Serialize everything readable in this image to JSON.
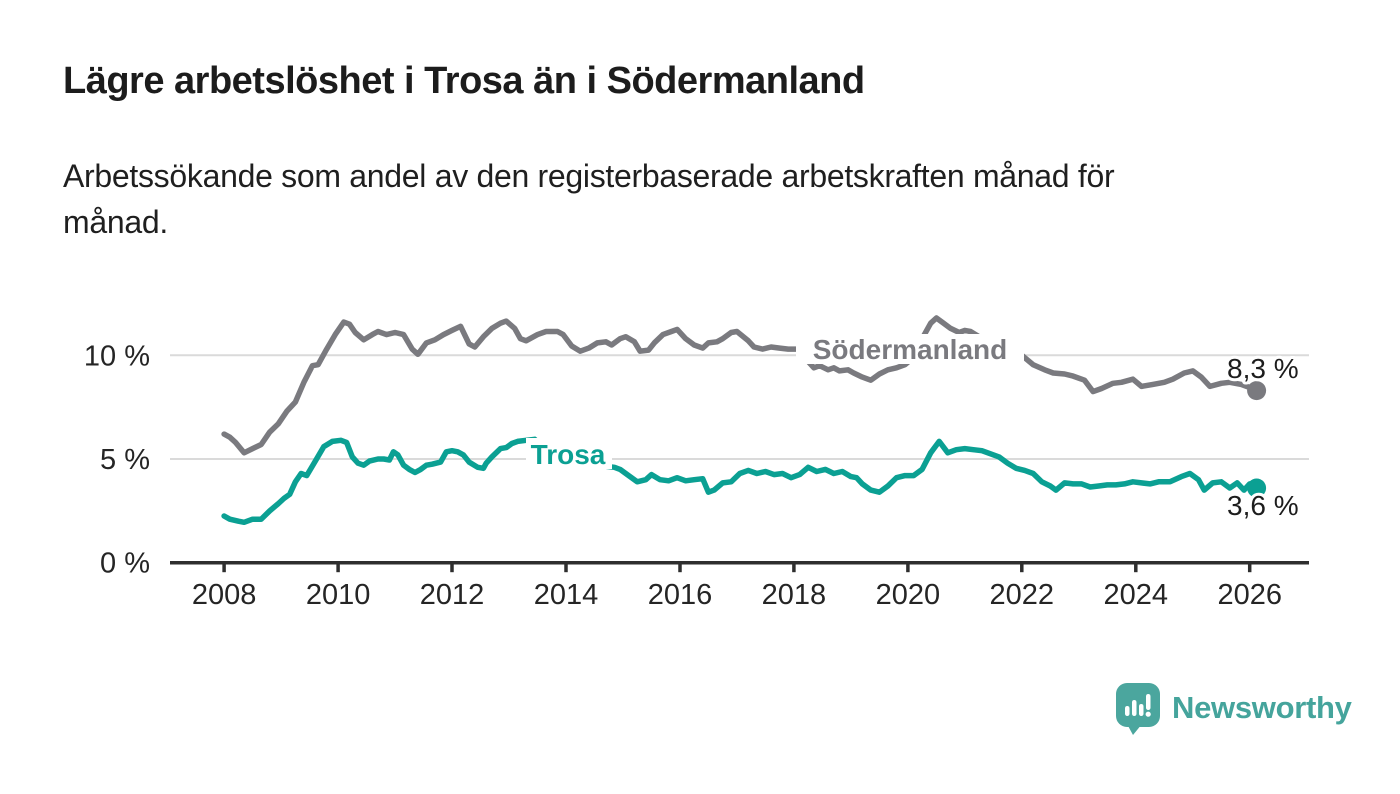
{
  "header": {
    "title": "Lägre arbetslöshet i Trosa än i Södermanland",
    "subtitle_lines": [
      "Arbetssökande som andel av den registerbaserade arbetskraften månad för",
      "månad."
    ],
    "subtitle_full": "Arbetssökande som andel av den registerbaserade arbetskraften månad för månad."
  },
  "chart_data": {
    "type": "line",
    "title": "Lägre arbetslöshet i Trosa än i Södermanland",
    "unit": "%",
    "grid": "horizontal-only",
    "legend": "inline-series-labels",
    "x_axis": {
      "ticks": [
        2008,
        2010,
        2012,
        2014,
        2016,
        2018,
        2020,
        2022,
        2024,
        2026
      ],
      "range": [
        2007.05,
        2027.04
      ]
    },
    "y_axis": {
      "ticks": [
        {
          "value": 0,
          "label": "0 %"
        },
        {
          "value": 5,
          "label": "5 %"
        },
        {
          "value": 10,
          "label": "10 %"
        }
      ],
      "range": [
        0,
        13.15
      ]
    },
    "series": [
      {
        "name": "Södermanland",
        "color": "#7a7a7f",
        "end_label": "8,3 %",
        "end_value": 8.3,
        "points": [
          [
            2008.0,
            6.2
          ],
          [
            2008.1,
            6.05
          ],
          [
            2008.2,
            5.8
          ],
          [
            2008.35,
            5.3
          ],
          [
            2008.5,
            5.5
          ],
          [
            2008.65,
            5.7
          ],
          [
            2008.8,
            6.3
          ],
          [
            2008.95,
            6.7
          ],
          [
            2009.1,
            7.3
          ],
          [
            2009.25,
            7.75
          ],
          [
            2009.4,
            8.7
          ],
          [
            2009.55,
            9.5
          ],
          [
            2009.65,
            9.55
          ],
          [
            2009.8,
            10.3
          ],
          [
            2009.95,
            11.0
          ],
          [
            2010.1,
            11.6
          ],
          [
            2010.2,
            11.5
          ],
          [
            2010.3,
            11.1
          ],
          [
            2010.45,
            10.75
          ],
          [
            2010.6,
            11.0
          ],
          [
            2010.7,
            11.15
          ],
          [
            2010.85,
            11.0
          ],
          [
            2011.0,
            11.1
          ],
          [
            2011.15,
            11.0
          ],
          [
            2011.3,
            10.3
          ],
          [
            2011.4,
            10.05
          ],
          [
            2011.55,
            10.6
          ],
          [
            2011.7,
            10.75
          ],
          [
            2011.85,
            11.0
          ],
          [
            2012.0,
            11.2
          ],
          [
            2012.15,
            11.4
          ],
          [
            2012.3,
            10.55
          ],
          [
            2012.4,
            10.4
          ],
          [
            2012.55,
            10.9
          ],
          [
            2012.7,
            11.3
          ],
          [
            2012.85,
            11.55
          ],
          [
            2012.95,
            11.65
          ],
          [
            2013.1,
            11.3
          ],
          [
            2013.2,
            10.8
          ],
          [
            2013.3,
            10.7
          ],
          [
            2013.5,
            11.0
          ],
          [
            2013.65,
            11.15
          ],
          [
            2013.85,
            11.15
          ],
          [
            2013.95,
            11.0
          ],
          [
            2014.1,
            10.45
          ],
          [
            2014.25,
            10.2
          ],
          [
            2014.4,
            10.35
          ],
          [
            2014.55,
            10.6
          ],
          [
            2014.7,
            10.65
          ],
          [
            2014.8,
            10.5
          ],
          [
            2014.95,
            10.8
          ],
          [
            2015.05,
            10.9
          ],
          [
            2015.2,
            10.65
          ],
          [
            2015.3,
            10.2
          ],
          [
            2015.45,
            10.25
          ],
          [
            2015.55,
            10.6
          ],
          [
            2015.7,
            11.0
          ],
          [
            2015.85,
            11.15
          ],
          [
            2015.95,
            11.25
          ],
          [
            2016.1,
            10.8
          ],
          [
            2016.25,
            10.5
          ],
          [
            2016.4,
            10.35
          ],
          [
            2016.5,
            10.6
          ],
          [
            2016.65,
            10.65
          ],
          [
            2016.75,
            10.8
          ],
          [
            2016.9,
            11.1
          ],
          [
            2017.0,
            11.15
          ],
          [
            2017.2,
            10.7
          ],
          [
            2017.3,
            10.4
          ],
          [
            2017.45,
            10.3
          ],
          [
            2017.6,
            10.4
          ],
          [
            2017.75,
            10.35
          ],
          [
            2017.9,
            10.3
          ],
          [
            2018.05,
            10.3
          ],
          [
            2018.15,
            10.1
          ],
          [
            2018.25,
            9.7
          ],
          [
            2018.35,
            9.4
          ],
          [
            2018.45,
            9.5
          ],
          [
            2018.6,
            9.3
          ],
          [
            2018.7,
            9.4
          ],
          [
            2018.8,
            9.25
          ],
          [
            2018.95,
            9.3
          ],
          [
            2019.05,
            9.15
          ],
          [
            2019.2,
            8.95
          ],
          [
            2019.35,
            8.8
          ],
          [
            2019.5,
            9.1
          ],
          [
            2019.65,
            9.3
          ],
          [
            2019.8,
            9.4
          ],
          [
            2019.95,
            9.55
          ],
          [
            2020.1,
            9.9
          ],
          [
            2020.25,
            10.8
          ],
          [
            2020.4,
            11.55
          ],
          [
            2020.5,
            11.8
          ],
          [
            2020.6,
            11.6
          ],
          [
            2020.75,
            11.3
          ],
          [
            2020.9,
            11.1
          ],
          [
            2021.0,
            11.2
          ],
          [
            2021.1,
            11.15
          ],
          [
            2021.25,
            10.9
          ],
          [
            2021.4,
            10.65
          ],
          [
            2021.55,
            10.4
          ],
          [
            2021.7,
            10.2
          ],
          [
            2021.85,
            10.1
          ],
          [
            2022.0,
            10.0
          ],
          [
            2022.2,
            9.55
          ],
          [
            2022.4,
            9.3
          ],
          [
            2022.55,
            9.15
          ],
          [
            2022.75,
            9.1
          ],
          [
            2022.9,
            9.0
          ],
          [
            2023.1,
            8.8
          ],
          [
            2023.25,
            8.25
          ],
          [
            2023.4,
            8.4
          ],
          [
            2023.6,
            8.65
          ],
          [
            2023.75,
            8.7
          ],
          [
            2023.95,
            8.85
          ],
          [
            2024.1,
            8.5
          ],
          [
            2024.3,
            8.6
          ],
          [
            2024.5,
            8.7
          ],
          [
            2024.65,
            8.85
          ],
          [
            2024.85,
            9.15
          ],
          [
            2025.0,
            9.25
          ],
          [
            2025.15,
            8.95
          ],
          [
            2025.3,
            8.5
          ],
          [
            2025.5,
            8.65
          ],
          [
            2025.65,
            8.7
          ],
          [
            2025.85,
            8.6
          ],
          [
            2026.0,
            8.45
          ],
          [
            2026.12,
            8.3
          ]
        ]
      },
      {
        "name": "Trosa",
        "color": "#0ba093",
        "end_label": "3,6 %",
        "end_value": 3.6,
        "points": [
          [
            2008.0,
            2.25
          ],
          [
            2008.1,
            2.1
          ],
          [
            2008.25,
            2.0
          ],
          [
            2008.35,
            1.95
          ],
          [
            2008.5,
            2.1
          ],
          [
            2008.65,
            2.1
          ],
          [
            2008.8,
            2.5
          ],
          [
            2008.95,
            2.85
          ],
          [
            2009.05,
            3.1
          ],
          [
            2009.15,
            3.3
          ],
          [
            2009.25,
            3.9
          ],
          [
            2009.35,
            4.3
          ],
          [
            2009.45,
            4.2
          ],
          [
            2009.6,
            4.9
          ],
          [
            2009.75,
            5.6
          ],
          [
            2009.9,
            5.85
          ],
          [
            2010.05,
            5.9
          ],
          [
            2010.15,
            5.8
          ],
          [
            2010.25,
            5.1
          ],
          [
            2010.35,
            4.8
          ],
          [
            2010.45,
            4.7
          ],
          [
            2010.55,
            4.9
          ],
          [
            2010.7,
            5.0
          ],
          [
            2010.8,
            5.0
          ],
          [
            2010.9,
            4.95
          ],
          [
            2010.97,
            5.35
          ],
          [
            2011.05,
            5.2
          ],
          [
            2011.15,
            4.7
          ],
          [
            2011.25,
            4.5
          ],
          [
            2011.35,
            4.35
          ],
          [
            2011.45,
            4.5
          ],
          [
            2011.55,
            4.7
          ],
          [
            2011.65,
            4.75
          ],
          [
            2011.8,
            4.85
          ],
          [
            2011.9,
            5.35
          ],
          [
            2012.0,
            5.4
          ],
          [
            2012.1,
            5.35
          ],
          [
            2012.2,
            5.2
          ],
          [
            2012.3,
            4.85
          ],
          [
            2012.45,
            4.6
          ],
          [
            2012.55,
            4.55
          ],
          [
            2012.6,
            4.8
          ],
          [
            2012.7,
            5.1
          ],
          [
            2012.85,
            5.5
          ],
          [
            2012.95,
            5.55
          ],
          [
            2013.05,
            5.75
          ],
          [
            2013.15,
            5.85
          ],
          [
            2013.3,
            5.9
          ],
          [
            2013.45,
            5.95
          ],
          [
            2013.6,
            5.6
          ],
          [
            2013.8,
            5.2
          ],
          [
            2014.0,
            4.95
          ],
          [
            2014.25,
            4.8
          ],
          [
            2014.5,
            4.7
          ],
          [
            2014.7,
            4.65
          ],
          [
            2014.85,
            4.6
          ],
          [
            2014.95,
            4.5
          ],
          [
            2015.1,
            4.2
          ],
          [
            2015.25,
            3.9
          ],
          [
            2015.4,
            4.0
          ],
          [
            2015.5,
            4.25
          ],
          [
            2015.65,
            4.0
          ],
          [
            2015.8,
            3.95
          ],
          [
            2015.95,
            4.1
          ],
          [
            2016.1,
            3.95
          ],
          [
            2016.25,
            4.0
          ],
          [
            2016.4,
            4.05
          ],
          [
            2016.5,
            3.4
          ],
          [
            2016.6,
            3.5
          ],
          [
            2016.75,
            3.85
          ],
          [
            2016.9,
            3.9
          ],
          [
            2017.05,
            4.3
          ],
          [
            2017.2,
            4.45
          ],
          [
            2017.35,
            4.3
          ],
          [
            2017.5,
            4.4
          ],
          [
            2017.65,
            4.25
          ],
          [
            2017.8,
            4.3
          ],
          [
            2017.95,
            4.1
          ],
          [
            2018.1,
            4.25
          ],
          [
            2018.25,
            4.6
          ],
          [
            2018.4,
            4.4
          ],
          [
            2018.55,
            4.5
          ],
          [
            2018.7,
            4.3
          ],
          [
            2018.85,
            4.4
          ],
          [
            2019.0,
            4.15
          ],
          [
            2019.1,
            4.1
          ],
          [
            2019.2,
            3.8
          ],
          [
            2019.35,
            3.5
          ],
          [
            2019.5,
            3.4
          ],
          [
            2019.65,
            3.7
          ],
          [
            2019.8,
            4.1
          ],
          [
            2019.95,
            4.2
          ],
          [
            2020.1,
            4.2
          ],
          [
            2020.25,
            4.5
          ],
          [
            2020.4,
            5.3
          ],
          [
            2020.55,
            5.85
          ],
          [
            2020.7,
            5.3
          ],
          [
            2020.85,
            5.45
          ],
          [
            2021.0,
            5.5
          ],
          [
            2021.15,
            5.45
          ],
          [
            2021.3,
            5.4
          ],
          [
            2021.45,
            5.25
          ],
          [
            2021.6,
            5.1
          ],
          [
            2021.75,
            4.8
          ],
          [
            2021.9,
            4.55
          ],
          [
            2022.05,
            4.45
          ],
          [
            2022.2,
            4.3
          ],
          [
            2022.35,
            3.9
          ],
          [
            2022.5,
            3.7
          ],
          [
            2022.6,
            3.5
          ],
          [
            2022.75,
            3.85
          ],
          [
            2022.9,
            3.8
          ],
          [
            2023.05,
            3.8
          ],
          [
            2023.2,
            3.65
          ],
          [
            2023.35,
            3.7
          ],
          [
            2023.5,
            3.75
          ],
          [
            2023.65,
            3.75
          ],
          [
            2023.8,
            3.8
          ],
          [
            2023.95,
            3.9
          ],
          [
            2024.1,
            3.85
          ],
          [
            2024.25,
            3.8
          ],
          [
            2024.4,
            3.9
          ],
          [
            2024.6,
            3.9
          ],
          [
            2024.8,
            4.15
          ],
          [
            2024.95,
            4.3
          ],
          [
            2025.1,
            4.0
          ],
          [
            2025.2,
            3.5
          ],
          [
            2025.35,
            3.85
          ],
          [
            2025.5,
            3.9
          ],
          [
            2025.65,
            3.6
          ],
          [
            2025.78,
            3.85
          ],
          [
            2025.9,
            3.5
          ],
          [
            2026.0,
            3.8
          ],
          [
            2026.12,
            3.6
          ]
        ]
      }
    ]
  },
  "footer": {
    "brand": "Newsworthy",
    "logo_icon": "bar-chart-speech-bubble-icon"
  },
  "colors": {
    "trosa": "#0ba093",
    "sodermanland": "#7a7a7f",
    "grid": "#dadada",
    "axis": "#2e2e2e",
    "brand_teal": "#45a49c"
  }
}
